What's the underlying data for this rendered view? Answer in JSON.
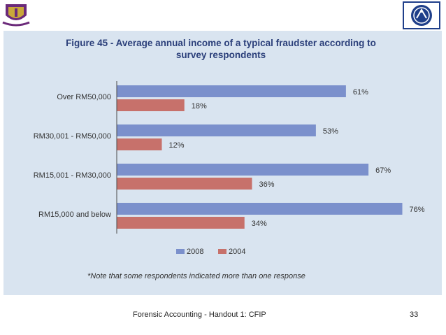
{
  "chart_data": {
    "type": "bar",
    "orientation": "horizontal",
    "title_line1": "Figure 45 - Average annual income of a typical fraudster according to",
    "title_line2": "survey respondents",
    "categories": [
      "Over RM50,000",
      "RM30,001 - RM50,000",
      "RM15,001 - RM30,000",
      "RM15,000 and below"
    ],
    "series": [
      {
        "name": "2008",
        "values": [
          61,
          53,
          67,
          76
        ],
        "labels": [
          "61%",
          "53%",
          "67%",
          "76%"
        ],
        "color": "#7b90cc"
      },
      {
        "name": "2004",
        "values": [
          18,
          12,
          36,
          34
        ],
        "labels": [
          "18%",
          "12%",
          "36%",
          "34%"
        ],
        "color": "#c7716b"
      }
    ],
    "xlim": [
      0,
      80
    ],
    "legend_position": "bottom",
    "grid": false,
    "note": "*Note that some respondents indicated more than one response"
  },
  "colors": {
    "panel_background": "#d9e4f0",
    "title_text": "#2b3f7a",
    "axis": "#4a4a4a"
  },
  "footer": {
    "text": "Forensic Accounting - Handout 1: CFIP",
    "page_number": "33"
  },
  "logos": {
    "left": "university-crest-icon",
    "right": "institute-emblem-icon"
  }
}
